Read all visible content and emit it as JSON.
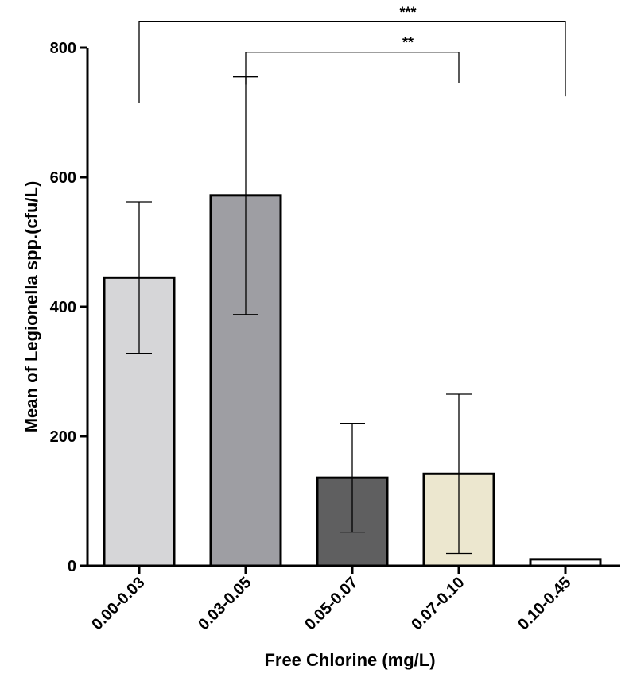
{
  "chart_data": {
    "type": "bar",
    "xlabel": "Free Chlorine (mg/L)",
    "ylabel": "Mean of Legionella spp.(cfu/L)",
    "ylim": [
      0,
      800
    ],
    "yticks": [
      0,
      200,
      400,
      600,
      800
    ],
    "grid": false,
    "categories": [
      "0.00-0.03",
      "0.03-0.05",
      "0.05-0.07",
      "0.07-0.10",
      "0.10-0.45"
    ],
    "values": [
      445,
      572,
      136,
      142,
      10
    ],
    "error_low": [
      328,
      388,
      52,
      19,
      10
    ],
    "error_high": [
      562,
      755,
      220,
      265,
      10
    ],
    "colors": [
      "#d6d6d8",
      "#9e9ea3",
      "#5f5f60",
      "#ece7cf",
      "#ffffff"
    ],
    "significance": [
      {
        "from": 0,
        "to": 4,
        "label": "***",
        "y": 840,
        "drop_from": 715,
        "drop_to": 725
      },
      {
        "from": 1,
        "to": 3,
        "label": "**",
        "y": 793,
        "drop_from": 743,
        "drop_to": 745
      }
    ]
  }
}
